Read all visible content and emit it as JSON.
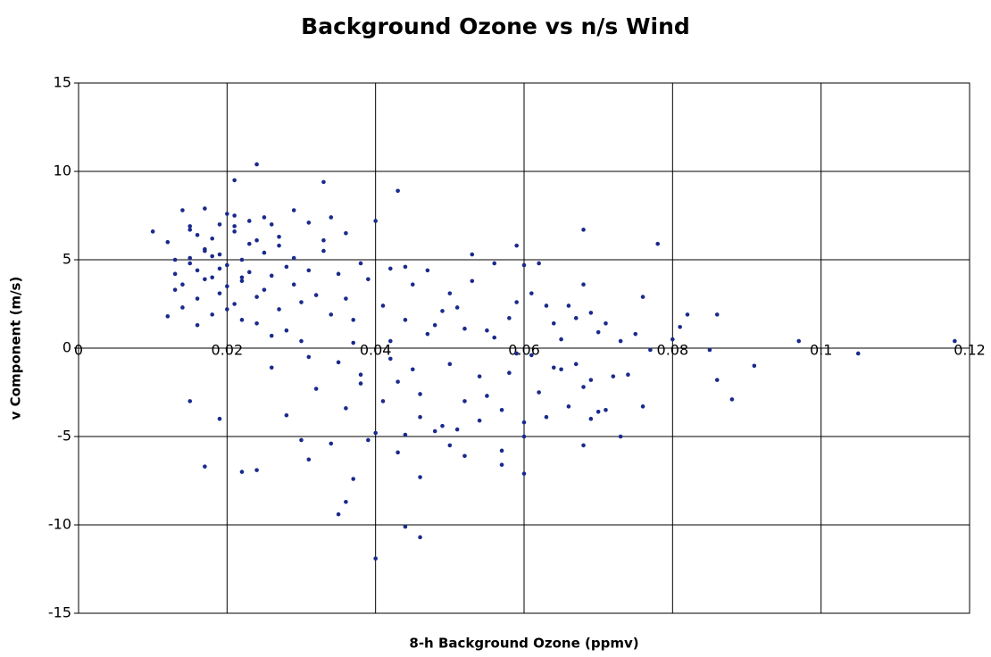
{
  "chart_data": {
    "type": "scatter",
    "title": "Background Ozone vs n/s Wind",
    "x_label": "8-h Background Ozone (ppmv)",
    "y_label": "v Component (m/s)",
    "xlim": [
      0,
      0.12
    ],
    "xticks": [
      0,
      0.02,
      0.04,
      0.06,
      0.08,
      0.1,
      0.12
    ],
    "ylim": [
      -15,
      15
    ],
    "yticks": [
      -15,
      -10,
      -5,
      0,
      5,
      10,
      15
    ],
    "grid": true,
    "color": "#1a2a8c",
    "x": [
      0.013,
      0.014,
      0.014,
      0.015,
      0.015,
      0.016,
      0.016,
      0.017,
      0.017,
      0.018,
      0.018,
      0.019,
      0.019,
      0.02,
      0.02,
      0.021,
      0.021,
      0.022,
      0.022,
      0.023,
      0.023,
      0.024,
      0.024,
      0.025,
      0.025,
      0.026,
      0.026,
      0.027,
      0.027,
      0.028,
      0.012,
      0.013,
      0.015,
      0.016,
      0.017,
      0.018,
      0.019,
      0.02,
      0.021,
      0.022,
      0.012,
      0.014,
      0.016,
      0.018,
      0.02,
      0.022,
      0.024,
      0.026,
      0.028,
      0.03,
      0.013,
      0.015,
      0.017,
      0.019,
      0.021,
      0.023,
      0.025,
      0.027,
      0.029,
      0.031,
      0.029,
      0.03,
      0.031,
      0.032,
      0.033,
      0.034,
      0.035,
      0.036,
      0.037,
      0.038,
      0.029,
      0.031,
      0.033,
      0.034,
      0.035,
      0.036,
      0.037,
      0.038,
      0.039,
      0.04,
      0.026,
      0.028,
      0.03,
      0.032,
      0.034,
      0.036,
      0.038,
      0.04,
      0.042,
      0.044,
      0.041,
      0.042,
      0.043,
      0.044,
      0.045,
      0.046,
      0.047,
      0.048,
      0.049,
      0.05,
      0.041,
      0.042,
      0.043,
      0.044,
      0.045,
      0.046,
      0.047,
      0.048,
      0.049,
      0.05,
      0.051,
      0.052,
      0.053,
      0.054,
      0.055,
      0.056,
      0.057,
      0.058,
      0.059,
      0.06,
      0.051,
      0.052,
      0.053,
      0.054,
      0.055,
      0.056,
      0.057,
      0.058,
      0.059,
      0.06,
      0.061,
      0.062,
      0.063,
      0.064,
      0.065,
      0.066,
      0.067,
      0.068,
      0.069,
      0.07,
      0.061,
      0.062,
      0.063,
      0.064,
      0.065,
      0.066,
      0.067,
      0.068,
      0.069,
      0.07,
      0.071,
      0.072,
      0.073,
      0.074,
      0.075,
      0.076,
      0.077,
      0.06,
      0.057,
      0.059,
      0.118,
      0.105,
      0.097,
      0.091,
      0.088,
      0.086,
      0.086,
      0.085,
      0.082,
      0.08,
      0.081,
      0.078,
      0.068,
      0.04,
      0.044,
      0.046,
      0.035,
      0.036,
      0.024,
      0.021,
      0.033,
      0.043,
      0.01,
      0.017,
      0.015,
      0.019,
      0.022,
      0.024,
      0.06,
      0.073,
      0.068,
      0.069,
      0.076,
      0.071,
      0.046,
      0.05,
      0.052,
      0.031,
      0.037,
      0.039
    ],
    "values": [
      4.2,
      7.8,
      3.6,
      5.1,
      6.7,
      4.4,
      2.8,
      7.9,
      5.6,
      4.0,
      6.2,
      3.1,
      5.3,
      7.6,
      4.7,
      2.5,
      6.9,
      5.0,
      3.8,
      7.2,
      4.3,
      2.9,
      6.1,
      5.4,
      3.3,
      7.0,
      4.1,
      2.2,
      5.8,
      4.6,
      6.0,
      3.3,
      4.8,
      6.4,
      3.9,
      5.2,
      4.5,
      3.5,
      6.6,
      4.0,
      1.8,
      2.3,
      1.3,
      1.9,
      2.2,
      1.6,
      1.4,
      0.7,
      1.0,
      0.4,
      5.0,
      6.9,
      5.5,
      7.0,
      7.5,
      5.9,
      7.4,
      6.3,
      3.6,
      7.1,
      5.1,
      2.6,
      4.4,
      3.0,
      5.5,
      1.9,
      4.2,
      2.8,
      1.6,
      4.8,
      7.8,
      -0.5,
      6.1,
      7.4,
      -0.8,
      6.5,
      0.3,
      -1.5,
      3.9,
      7.2,
      -1.1,
      -3.8,
      -5.2,
      -2.3,
      -5.4,
      -3.4,
      -2.0,
      -4.8,
      -0.6,
      -4.9,
      2.4,
      4.5,
      -1.9,
      1.6,
      3.6,
      -2.6,
      0.8,
      -4.7,
      2.1,
      -0.9,
      -3.0,
      0.4,
      -5.9,
      4.6,
      -1.2,
      -3.9,
      4.4,
      1.3,
      -4.4,
      3.1,
      -4.6,
      1.1,
      5.3,
      -1.6,
      -2.7,
      0.6,
      -3.5,
      1.7,
      -0.3,
      -5.0,
      2.3,
      -3.0,
      3.8,
      -4.1,
      1.0,
      4.8,
      -5.8,
      -1.4,
      2.6,
      -4.2,
      3.1,
      -2.5,
      2.4,
      -1.1,
      0.5,
      -3.3,
      1.7,
      3.6,
      -1.8,
      0.9,
      -0.4,
      4.8,
      -3.9,
      1.4,
      -1.2,
      2.4,
      -0.9,
      -2.2,
      2.0,
      -3.6,
      1.4,
      -1.6,
      0.4,
      -1.5,
      0.8,
      2.9,
      -0.1,
      4.7,
      -6.6,
      5.8,
      0.4,
      -0.3,
      0.4,
      -1.0,
      -2.9,
      1.9,
      -1.8,
      -0.1,
      1.9,
      0.5,
      1.2,
      5.9,
      6.7,
      -11.9,
      -10.1,
      -10.7,
      -9.4,
      -8.7,
      10.4,
      9.5,
      9.4,
      8.9,
      6.6,
      -6.7,
      -3.0,
      -4.0,
      -7.0,
      -6.9,
      -7.1,
      -5.0,
      -5.5,
      -4.0,
      -3.3,
      -3.5,
      -7.3,
      -5.5,
      -6.1,
      -6.3,
      -7.4,
      -5.2
    ]
  }
}
